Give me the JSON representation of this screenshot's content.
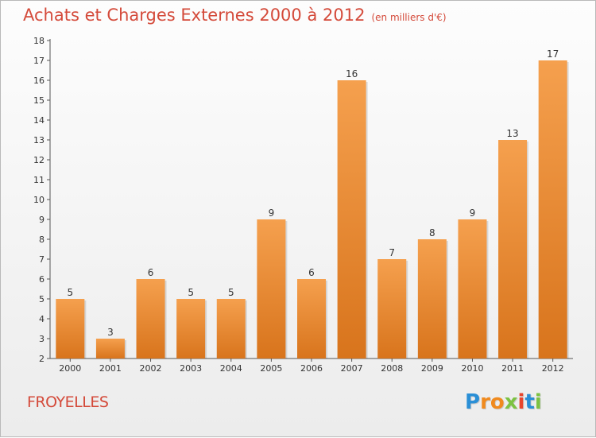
{
  "title": "Achats et Charges Externes 2000 à 2012",
  "subtitle": "(en milliers d'€)",
  "commune": "FROYELLES",
  "logo": {
    "letters": [
      "P",
      "r",
      "o",
      "x",
      "i",
      "t",
      "i"
    ],
    "colors": [
      "#2a8fd6",
      "#f08a1e",
      "#f08a1e",
      "#7cc242",
      "#e8452c",
      "#2a8fd6",
      "#7cc242"
    ]
  },
  "colors": {
    "bar_top": "#f5a04e",
    "bar_bottom": "#d8741c",
    "title": "#d44a3a"
  },
  "chart_data": {
    "type": "bar",
    "categories": [
      "2000",
      "2001",
      "2002",
      "2003",
      "2004",
      "2005",
      "2006",
      "2007",
      "2008",
      "2009",
      "2010",
      "2011",
      "2012"
    ],
    "values": [
      5,
      3,
      6,
      5,
      5,
      9,
      6,
      16,
      7,
      8,
      9,
      13,
      17
    ],
    "ylim": [
      2,
      18
    ],
    "yticks": [
      2,
      3,
      4,
      5,
      6,
      7,
      8,
      9,
      10,
      11,
      12,
      13,
      14,
      15,
      16,
      17,
      18
    ],
    "grid": false,
    "legend": "none"
  }
}
